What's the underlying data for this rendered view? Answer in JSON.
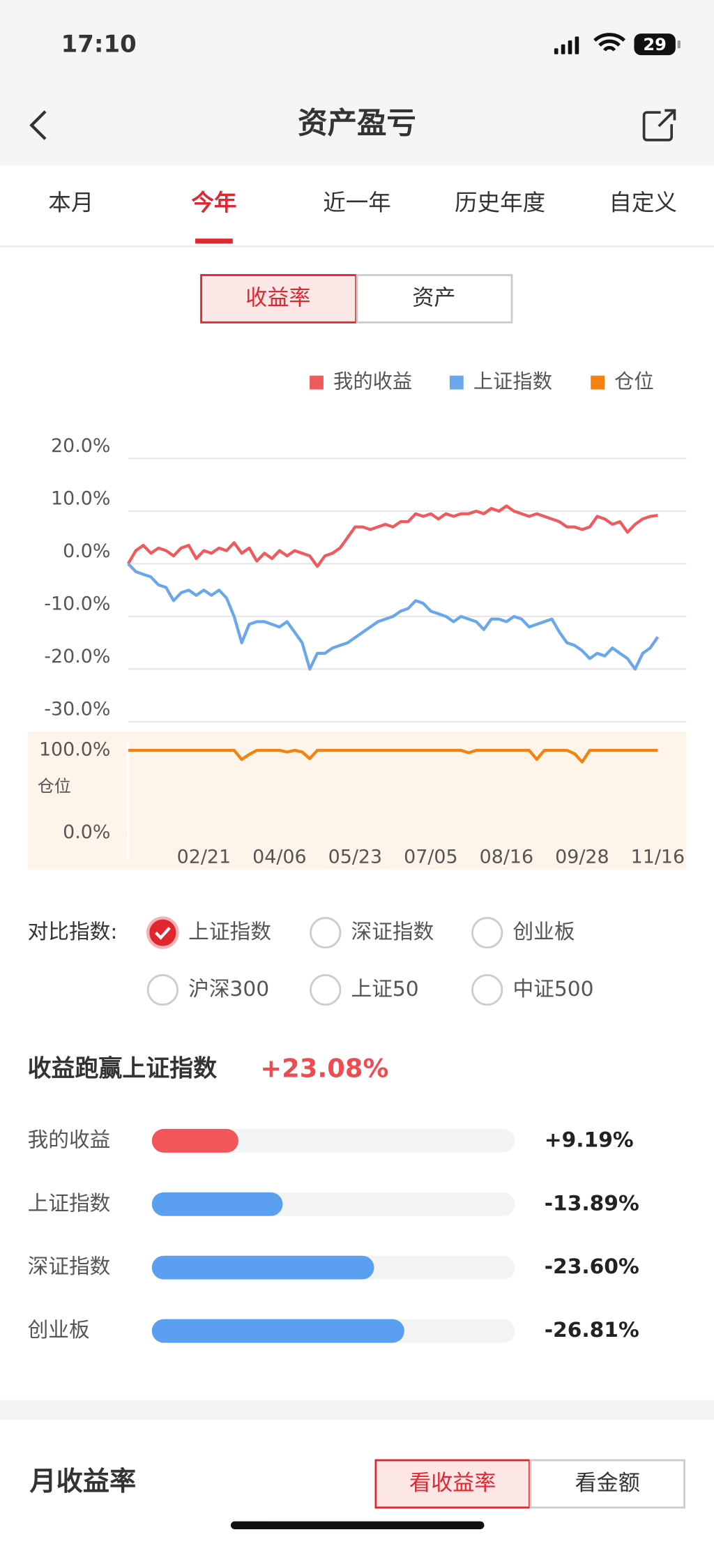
{
  "status_bar": {
    "time": "17:10",
    "battery": "29"
  },
  "nav": {
    "title": "资产盈亏"
  },
  "tabs": {
    "items": [
      "本月",
      "今年",
      "近一年",
      "历史年度",
      "自定义"
    ],
    "active": 1
  },
  "toggle": {
    "items": [
      "收益率",
      "资产"
    ],
    "active": 0
  },
  "chart_data": {
    "type": "line",
    "xlim": [
      0,
      70
    ],
    "xticks": [
      {
        "value": 10,
        "label": "02/21"
      },
      {
        "value": 20,
        "label": "04/06"
      },
      {
        "value": 30,
        "label": "05/23"
      },
      {
        "value": 40,
        "label": "07/05"
      },
      {
        "value": 50,
        "label": "08/16"
      },
      {
        "value": 60,
        "label": "09/28"
      },
      {
        "value": 70,
        "label": "11/16"
      }
    ],
    "ylim": [
      -30,
      20
    ],
    "yticks": [
      {
        "value": 20,
        "label": "20.0%"
      },
      {
        "value": 10,
        "label": "10.0%"
      },
      {
        "value": 0,
        "label": "0.0%"
      },
      {
        "value": -10,
        "label": "-10.0%"
      },
      {
        "value": -20,
        "label": "-20.0%"
      },
      {
        "value": -30,
        "label": "-30.0%"
      }
    ],
    "y2lim": [
      0,
      100
    ],
    "y2ticks": [
      {
        "value": 100,
        "label": "100.0%"
      },
      {
        "value": 0,
        "label": "0.0%"
      }
    ],
    "y2label": "仓位",
    "grid": true,
    "series": [
      {
        "name": "我的收益",
        "color": "#ef5a5d",
        "values": [
          0,
          2.5,
          3.5,
          2,
          3,
          2.5,
          1.5,
          3,
          3.5,
          1,
          2.5,
          2,
          3,
          2.5,
          4,
          2,
          3,
          0.5,
          2,
          1,
          2.5,
          1.5,
          2.5,
          2,
          1.5,
          -0.5,
          1.5,
          2,
          3,
          5,
          7,
          7,
          6.5,
          7,
          7.5,
          7,
          8,
          8,
          9.5,
          9,
          9.5,
          8.5,
          9.5,
          9,
          9.5,
          9.5,
          10,
          9.5,
          10.5,
          10,
          11,
          10,
          9.5,
          9,
          9.5,
          9,
          8.5,
          8,
          7,
          7,
          6.5,
          7,
          9,
          8.5,
          7.5,
          8,
          6,
          7.5,
          8.5,
          9,
          9.19
        ]
      },
      {
        "name": "上证指数",
        "color": "#6aa7ea",
        "values": [
          0,
          -1.5,
          -2,
          -2.5,
          -4,
          -4.5,
          -7,
          -5.5,
          -5,
          -6,
          -5,
          -6,
          -5,
          -6.5,
          -10,
          -15,
          -11.5,
          -11,
          -11,
          -11.5,
          -12,
          -11,
          -13,
          -15,
          -20,
          -17,
          -17,
          -16,
          -15.5,
          -15,
          -14,
          -13,
          -12,
          -11,
          -10.5,
          -10,
          -9,
          -8.5,
          -7,
          -7.5,
          -9,
          -9.5,
          -10,
          -11,
          -10,
          -10.5,
          -11,
          -12.5,
          -10.5,
          -10.5,
          -11,
          -10,
          -10.5,
          -12,
          -11.5,
          -11,
          -10.5,
          -13,
          -15,
          -15.5,
          -16.5,
          -18,
          -17,
          -17.5,
          -16,
          -17,
          -18,
          -20,
          -17,
          -16,
          -13.89
        ]
      },
      {
        "name": "仓位",
        "color": "#f5820f",
        "axis": "y2",
        "values": [
          100,
          100,
          100,
          100,
          100,
          100,
          100,
          100,
          100,
          100,
          100,
          100,
          100,
          100,
          100,
          89,
          95,
          100,
          100,
          100,
          100,
          98,
          100,
          98,
          90,
          100,
          100,
          100,
          100,
          100,
          100,
          100,
          100,
          100,
          100,
          100,
          100,
          100,
          100,
          100,
          100,
          100,
          100,
          100,
          100,
          97,
          100,
          100,
          100,
          100,
          100,
          100,
          100,
          100,
          89,
          100,
          100,
          100,
          100,
          96,
          86,
          100,
          100,
          100,
          100,
          100,
          100,
          100,
          100,
          100,
          100
        ]
      }
    ]
  },
  "compare": {
    "label": "对比指数:",
    "options": [
      "上证指数",
      "深证指数",
      "创业板",
      "沪深300",
      "上证50",
      "中证500"
    ],
    "checked": 0
  },
  "outperform": {
    "title": "收益跑赢上证指数",
    "label": "+23.08%"
  },
  "bars": [
    {
      "name": "我的收益",
      "value": 9.19,
      "label": "+9.19%",
      "color": "#f0565a"
    },
    {
      "name": "上证指数",
      "value": -13.89,
      "label": "-13.89%",
      "color": "#5b9ff0"
    },
    {
      "name": "深证指数",
      "value": -23.6,
      "label": "-23.60%",
      "color": "#5b9ff0"
    },
    {
      "name": "创业板",
      "value": -26.81,
      "label": "-26.81%",
      "color": "#5b9ff0"
    }
  ],
  "monthly": {
    "title": "月收益率",
    "buttons": [
      "看收益率",
      "看金额"
    ],
    "active": 0
  }
}
